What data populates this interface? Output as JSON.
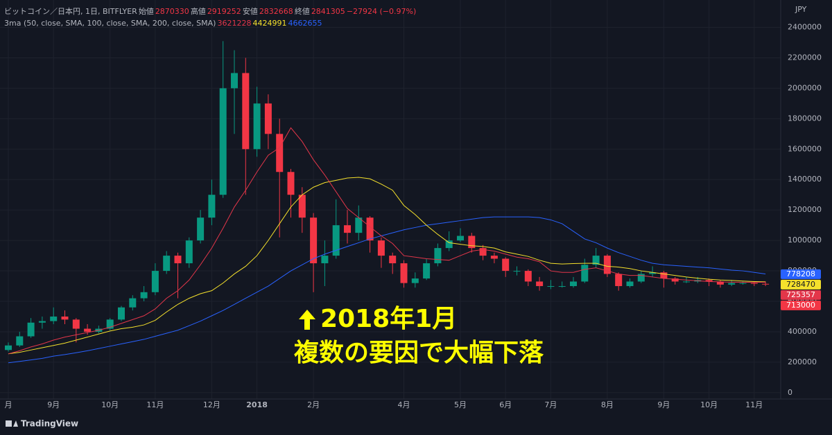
{
  "chart_data": {
    "type": "candlestick",
    "title": "ビットコイン／日本円, 1日, BITFLYER",
    "summary": [
      {
        "name": "始値",
        "value": 2870330
      },
      {
        "name": "高値",
        "value": 2919252
      },
      {
        "name": "安値",
        "value": 2832668
      },
      {
        "name": "終値",
        "value": 2841305
      }
    ],
    "change": "−27924 (−0.97%)",
    "indicator": {
      "name": "3ma (50, close, SMA, 100, close, SMA, 200, close, SMA)",
      "values": [
        3621228,
        4424991,
        4662655
      ]
    },
    "currency": "JPY",
    "annotation": [
      "2018年1月",
      "複数の要因で大幅下落"
    ],
    "up_color": "#089981",
    "down_color": "#f23645",
    "categories": [
      "月",
      null,
      null,
      null,
      "9月",
      null,
      null,
      null,
      null,
      "10月",
      null,
      null,
      null,
      "11月",
      null,
      null,
      null,
      null,
      "12月",
      null,
      null,
      null,
      "2018",
      null,
      null,
      null,
      null,
      "2月",
      null,
      null,
      null,
      null,
      null,
      null,
      null,
      "4月",
      null,
      null,
      null,
      null,
      "5月",
      null,
      null,
      null,
      "6月",
      null,
      null,
      null,
      "7月",
      null,
      null,
      null,
      null,
      "8月",
      null,
      null,
      null,
      null,
      "9月",
      null,
      null,
      null,
      "10月",
      null,
      null,
      null,
      "11月",
      null
    ],
    "open": [
      280000,
      310000,
      370000,
      460000,
      470000,
      500000,
      480000,
      420000,
      400000,
      420000,
      480000,
      560000,
      620000,
      660000,
      800000,
      900000,
      850000,
      1000000,
      1150000,
      1300000,
      2000000,
      2100000,
      1600000,
      1900000,
      1700000,
      1450000,
      1300000,
      1150000,
      850000,
      900000,
      1100000,
      1050000,
      1150000,
      1000000,
      900000,
      850000,
      720000,
      750000,
      850000,
      950000,
      1000000,
      1030000,
      950000,
      900000,
      880000,
      800000,
      800000,
      730000,
      700000,
      700000,
      700000,
      730000,
      840000,
      900000,
      780000,
      700000,
      730000,
      780000,
      790000,
      750000,
      730000,
      730000,
      740000,
      730000,
      710000,
      720000,
      720000,
      715000
    ],
    "high": [
      330000,
      400000,
      490000,
      500000,
      560000,
      540000,
      490000,
      450000,
      440000,
      490000,
      570000,
      640000,
      700000,
      850000,
      930000,
      920000,
      1020000,
      1200000,
      1400000,
      2310000,
      2250000,
      2200000,
      2010000,
      1960000,
      1800000,
      1470000,
      1350000,
      1180000,
      1000000,
      1270000,
      1200000,
      1230000,
      1160000,
      1020000,
      920000,
      870000,
      790000,
      880000,
      980000,
      1060000,
      1080000,
      1050000,
      970000,
      920000,
      890000,
      830000,
      810000,
      760000,
      740000,
      730000,
      760000,
      880000,
      950000,
      910000,
      790000,
      750000,
      800000,
      830000,
      800000,
      760000,
      760000,
      760000,
      750000,
      740000,
      740000,
      730000,
      730000,
      730000
    ],
    "low": [
      270000,
      300000,
      360000,
      420000,
      450000,
      450000,
      330000,
      380000,
      390000,
      410000,
      470000,
      540000,
      600000,
      640000,
      780000,
      620000,
      820000,
      980000,
      1100000,
      1280000,
      1700000,
      1300000,
      1550000,
      1600000,
      1020000,
      1150000,
      1050000,
      660000,
      700000,
      880000,
      980000,
      1000000,
      920000,
      820000,
      780000,
      690000,
      690000,
      740000,
      830000,
      930000,
      990000,
      920000,
      870000,
      850000,
      760000,
      770000,
      700000,
      670000,
      680000,
      690000,
      690000,
      720000,
      820000,
      760000,
      670000,
      690000,
      720000,
      760000,
      690000,
      710000,
      720000,
      720000,
      700000,
      690000,
      700000,
      710000,
      700000,
      700000
    ],
    "close": [
      310000,
      370000,
      460000,
      470000,
      500000,
      480000,
      420000,
      400000,
      420000,
      480000,
      560000,
      620000,
      660000,
      800000,
      900000,
      850000,
      1000000,
      1150000,
      1300000,
      2000000,
      2100000,
      1600000,
      1900000,
      1700000,
      1450000,
      1300000,
      1150000,
      850000,
      900000,
      1100000,
      1050000,
      1150000,
      1000000,
      900000,
      850000,
      720000,
      750000,
      850000,
      950000,
      1000000,
      1030000,
      950000,
      900000,
      880000,
      800000,
      800000,
      730000,
      700000,
      700000,
      700000,
      730000,
      840000,
      900000,
      780000,
      700000,
      730000,
      780000,
      790000,
      750000,
      730000,
      730000,
      740000,
      730000,
      710000,
      720000,
      720000,
      715000,
      713000
    ],
    "series": [
      {
        "color": "#2962ff",
        "last_value": 778208,
        "values": [
          196000,
          205000,
          215000,
          225000,
          240000,
          250000,
          262000,
          275000,
          290000,
          305000,
          320000,
          335000,
          350000,
          370000,
          390000,
          410000,
          440000,
          470000,
          505000,
          540000,
          580000,
          620000,
          660000,
          700000,
          750000,
          800000,
          840000,
          880000,
          910000,
          935000,
          960000,
          985000,
          1010000,
          1030000,
          1050000,
          1070000,
          1085000,
          1100000,
          1110000,
          1120000,
          1130000,
          1140000,
          1150000,
          1155000,
          1155000,
          1155000,
          1155000,
          1150000,
          1135000,
          1110000,
          1060000,
          1010000,
          985000,
          950000,
          920000,
          895000,
          870000,
          850000,
          840000,
          835000,
          830000,
          825000,
          820000,
          812000,
          805000,
          800000,
          790000,
          780000
        ]
      },
      {
        "color": "#f5e12c",
        "last_value": 728470,
        "values": [
          255000,
          265000,
          280000,
          295000,
          310000,
          325000,
          345000,
          365000,
          385000,
          405000,
          420000,
          430000,
          445000,
          475000,
          530000,
          580000,
          620000,
          650000,
          670000,
          720000,
          780000,
          830000,
          900000,
          1000000,
          1110000,
          1220000,
          1300000,
          1350000,
          1380000,
          1395000,
          1410000,
          1415000,
          1405000,
          1370000,
          1330000,
          1230000,
          1170000,
          1100000,
          1040000,
          985000,
          975000,
          965000,
          960000,
          950000,
          925000,
          910000,
          895000,
          870000,
          850000,
          845000,
          848000,
          850000,
          850000,
          830000,
          825000,
          815000,
          800000,
          790000,
          780000,
          770000,
          760000,
          752000,
          745000,
          740000,
          737000,
          733000,
          730000,
          728000
        ]
      },
      {
        "color": "#e3364a",
        "last_value": 725357,
        "values": [
          255000,
          275000,
          300000,
          320000,
          345000,
          365000,
          380000,
          395000,
          410000,
          430000,
          455000,
          480000,
          505000,
          550000,
          620000,
          670000,
          740000,
          840000,
          950000,
          1080000,
          1220000,
          1330000,
          1450000,
          1560000,
          1610000,
          1740000,
          1650000,
          1530000,
          1430000,
          1320000,
          1210000,
          1150000,
          1090000,
          1030000,
          980000,
          900000,
          890000,
          880000,
          875000,
          870000,
          900000,
          930000,
          940000,
          930000,
          910000,
          890000,
          880000,
          860000,
          800000,
          790000,
          790000,
          810000,
          820000,
          800000,
          780000,
          770000,
          770000,
          760000,
          750000,
          745000,
          740000,
          735000,
          730000,
          728000,
          726000,
          725000,
          725000,
          725000
        ]
      }
    ],
    "last_price": 713000,
    "ylim": [
      -60000,
      2580000
    ],
    "yticks": [
      0,
      200000,
      400000,
      600000,
      800000,
      1000000,
      1200000,
      1400000,
      1600000,
      1800000,
      2000000,
      2200000,
      2400000
    ],
    "grid": true
  },
  "brand": "TradingView"
}
